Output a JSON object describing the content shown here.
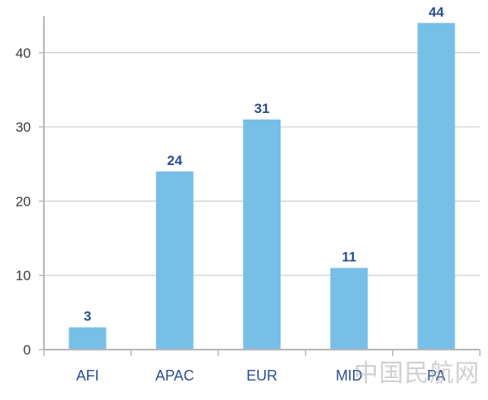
{
  "chart_data": {
    "type": "bar",
    "categories": [
      "AFI",
      "APAC",
      "EUR",
      "MID",
      "PA"
    ],
    "values": [
      3,
      24,
      31,
      11,
      44
    ],
    "data_labels": [
      "3",
      "24",
      "31",
      "11",
      "44"
    ],
    "ylim": [
      0,
      46
    ],
    "yticks": [
      0,
      10,
      20,
      30,
      40
    ],
    "grid": true,
    "title": "",
    "xlabel": "",
    "ylabel": "",
    "colors": {
      "bar": "#78bfe8",
      "grid": "#cccccc",
      "axis": "#b5b5b5",
      "label": "#2a4f8f",
      "tick": "#3a3a3a"
    }
  },
  "watermark": "中国民航网"
}
